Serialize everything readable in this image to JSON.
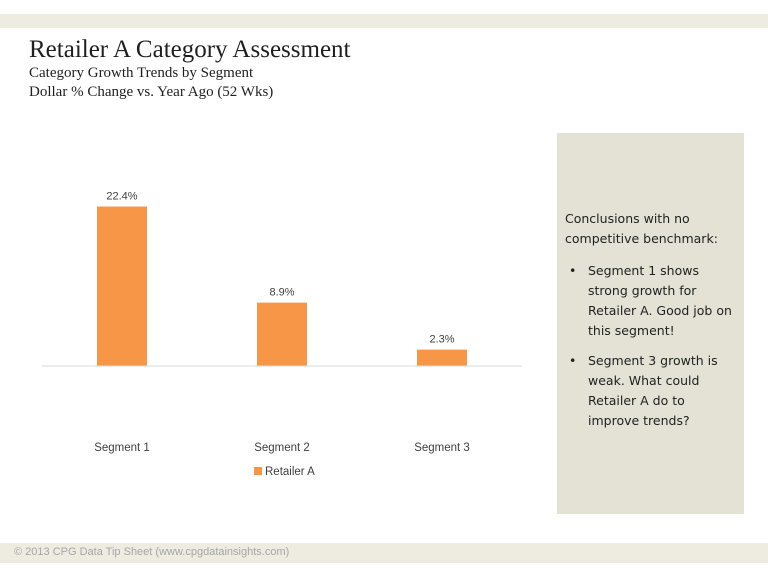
{
  "header": {
    "title": "Retailer A Category Assessment",
    "subtitle_line1": "Category Growth Trends by Segment",
    "subtitle_line2": "Dollar % Change vs. Year Ago (52 Wks)"
  },
  "chart_data": {
    "type": "bar",
    "categories": [
      "Segment 1",
      "Segment 2",
      "Segment 3"
    ],
    "series": [
      {
        "name": "Retailer A",
        "values": [
          22.4,
          8.9,
          2.3
        ]
      }
    ],
    "data_labels": [
      "22.4%",
      "8.9%",
      "2.3%"
    ],
    "ylim": [
      0,
      25
    ],
    "grid": false,
    "legend": "bottom",
    "colors": {
      "Retailer A": "#f79646"
    }
  },
  "sidebar": {
    "intro": "Conclusions with no competitive benchmark:",
    "bullet_char": "•",
    "bullets": [
      "Segment 1 shows strong growth for Retailer A. Good job on this segment!",
      "Segment 3 growth is weak.   What could Retailer A do to improve trends?"
    ]
  },
  "footer": {
    "text": "© 2013 CPG Data Tip Sheet (www.cpgdatainsights.com)"
  },
  "colors": {
    "band": "#eeece1",
    "sidebar_bg": "#e3e2d5",
    "bar": "#f79646"
  }
}
